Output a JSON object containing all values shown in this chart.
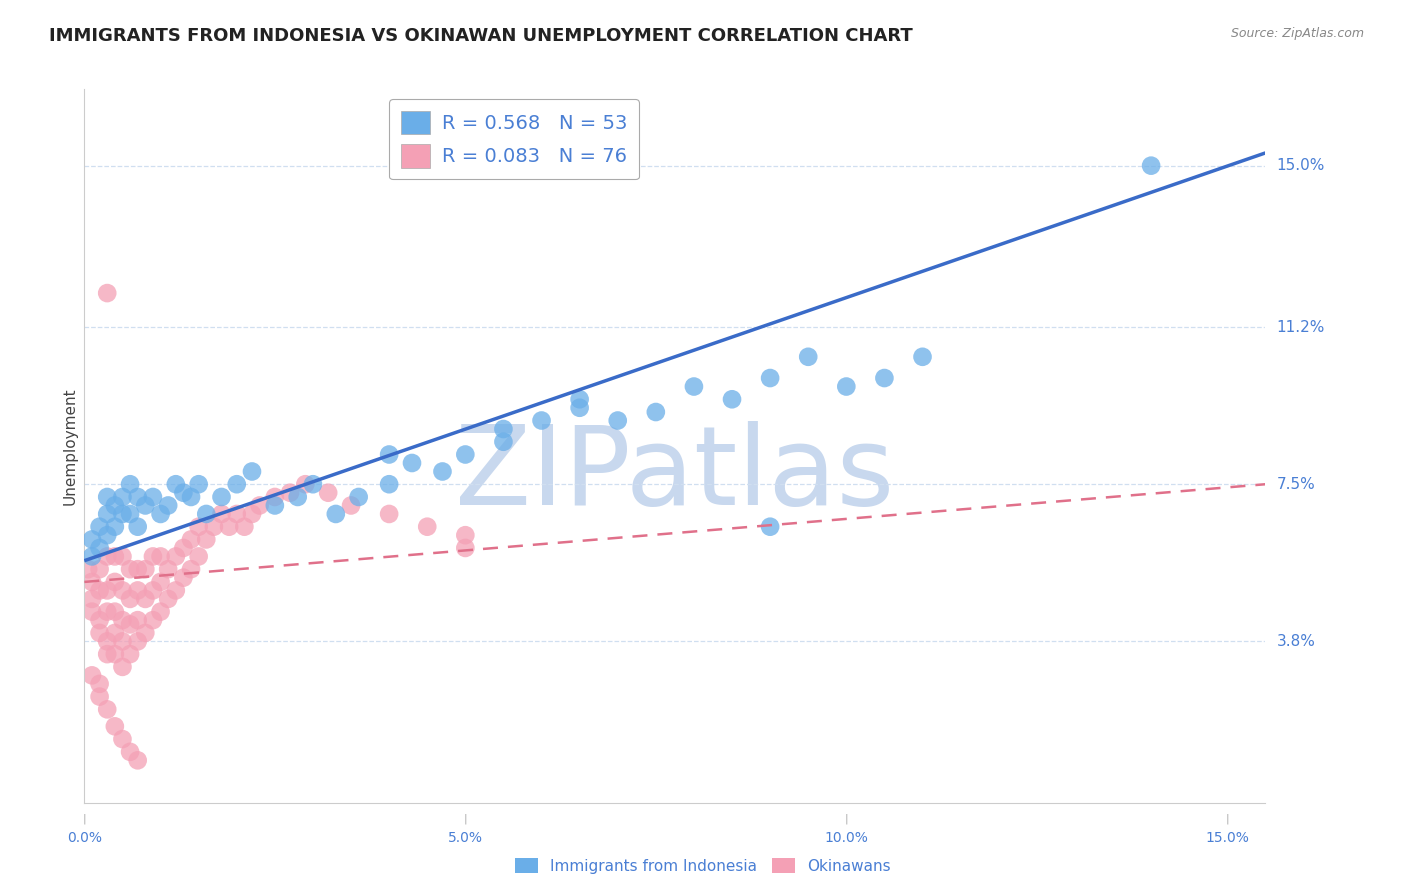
{
  "title": "IMMIGRANTS FROM INDONESIA VS OKINAWAN UNEMPLOYMENT CORRELATION CHART",
  "source": "Source: ZipAtlas.com",
  "ylabel": "Unemployment",
  "yticks": [
    0.038,
    0.075,
    0.112,
    0.15
  ],
  "ytick_labels": [
    "3.8%",
    "7.5%",
    "11.2%",
    "15.0%"
  ],
  "xticks": [
    0.0,
    0.05,
    0.1,
    0.15
  ],
  "xtick_labels": [
    "0.0%",
    "5.0%",
    "10.0%",
    "15.0%"
  ],
  "xmin": 0.0,
  "xmax": 0.155,
  "ymin": 0.0,
  "ymax": 0.168,
  "blue_R": 0.568,
  "blue_N": 53,
  "pink_R": 0.083,
  "pink_N": 76,
  "blue_color": "#6aaee8",
  "pink_color": "#f4a0b5",
  "blue_line_color": "#3a6bc8",
  "pink_line_color": "#e0708a",
  "watermark": "ZIPatlas",
  "watermark_color": "#c8d8ee",
  "legend_label_blue": "Immigrants from Indonesia",
  "legend_label_pink": "Okinawans",
  "blue_points_x": [
    0.001,
    0.001,
    0.002,
    0.002,
    0.003,
    0.003,
    0.003,
    0.004,
    0.004,
    0.005,
    0.005,
    0.006,
    0.006,
    0.007,
    0.007,
    0.008,
    0.009,
    0.01,
    0.011,
    0.012,
    0.013,
    0.014,
    0.015,
    0.016,
    0.018,
    0.02,
    0.022,
    0.025,
    0.028,
    0.03,
    0.033,
    0.036,
    0.04,
    0.043,
    0.047,
    0.05,
    0.055,
    0.06,
    0.065,
    0.07,
    0.075,
    0.08,
    0.085,
    0.09,
    0.095,
    0.1,
    0.105,
    0.11,
    0.04,
    0.055,
    0.065,
    0.14,
    0.09
  ],
  "blue_points_y": [
    0.062,
    0.058,
    0.065,
    0.06,
    0.063,
    0.068,
    0.072,
    0.065,
    0.07,
    0.068,
    0.072,
    0.075,
    0.068,
    0.072,
    0.065,
    0.07,
    0.072,
    0.068,
    0.07,
    0.075,
    0.073,
    0.072,
    0.075,
    0.068,
    0.072,
    0.075,
    0.078,
    0.07,
    0.072,
    0.075,
    0.068,
    0.072,
    0.075,
    0.08,
    0.078,
    0.082,
    0.085,
    0.09,
    0.095,
    0.09,
    0.092,
    0.098,
    0.095,
    0.1,
    0.105,
    0.098,
    0.1,
    0.105,
    0.082,
    0.088,
    0.093,
    0.15,
    0.065
  ],
  "pink_points_x": [
    0.0005,
    0.001,
    0.001,
    0.001,
    0.002,
    0.002,
    0.002,
    0.002,
    0.003,
    0.003,
    0.003,
    0.003,
    0.003,
    0.004,
    0.004,
    0.004,
    0.004,
    0.004,
    0.005,
    0.005,
    0.005,
    0.005,
    0.005,
    0.006,
    0.006,
    0.006,
    0.006,
    0.007,
    0.007,
    0.007,
    0.007,
    0.008,
    0.008,
    0.008,
    0.009,
    0.009,
    0.009,
    0.01,
    0.01,
    0.01,
    0.011,
    0.011,
    0.012,
    0.012,
    0.013,
    0.013,
    0.014,
    0.014,
    0.015,
    0.015,
    0.016,
    0.017,
    0.018,
    0.019,
    0.02,
    0.021,
    0.022,
    0.023,
    0.025,
    0.027,
    0.029,
    0.032,
    0.035,
    0.04,
    0.045,
    0.05,
    0.001,
    0.002,
    0.002,
    0.003,
    0.004,
    0.005,
    0.006,
    0.007,
    0.003,
    0.05
  ],
  "pink_points_y": [
    0.055,
    0.045,
    0.048,
    0.052,
    0.04,
    0.043,
    0.05,
    0.055,
    0.035,
    0.038,
    0.045,
    0.05,
    0.058,
    0.035,
    0.04,
    0.045,
    0.052,
    0.058,
    0.032,
    0.038,
    0.043,
    0.05,
    0.058,
    0.035,
    0.042,
    0.048,
    0.055,
    0.038,
    0.043,
    0.05,
    0.055,
    0.04,
    0.048,
    0.055,
    0.043,
    0.05,
    0.058,
    0.045,
    0.052,
    0.058,
    0.048,
    0.055,
    0.05,
    0.058,
    0.053,
    0.06,
    0.055,
    0.062,
    0.058,
    0.065,
    0.062,
    0.065,
    0.068,
    0.065,
    0.068,
    0.065,
    0.068,
    0.07,
    0.072,
    0.073,
    0.075,
    0.073,
    0.07,
    0.068,
    0.065,
    0.063,
    0.03,
    0.028,
    0.025,
    0.022,
    0.018,
    0.015,
    0.012,
    0.01,
    0.12,
    0.06
  ],
  "blue_line_x0": 0.0,
  "blue_line_y0": 0.057,
  "blue_line_x1": 0.155,
  "blue_line_y1": 0.153,
  "pink_line_x0": 0.0,
  "pink_line_y0": 0.052,
  "pink_line_x1": 0.155,
  "pink_line_y1": 0.075,
  "grid_color": "#d0dff0",
  "background_color": "#FFFFFF",
  "title_fontsize": 13,
  "tick_label_color": "#4a7fd4",
  "ylabel_color": "#444444"
}
